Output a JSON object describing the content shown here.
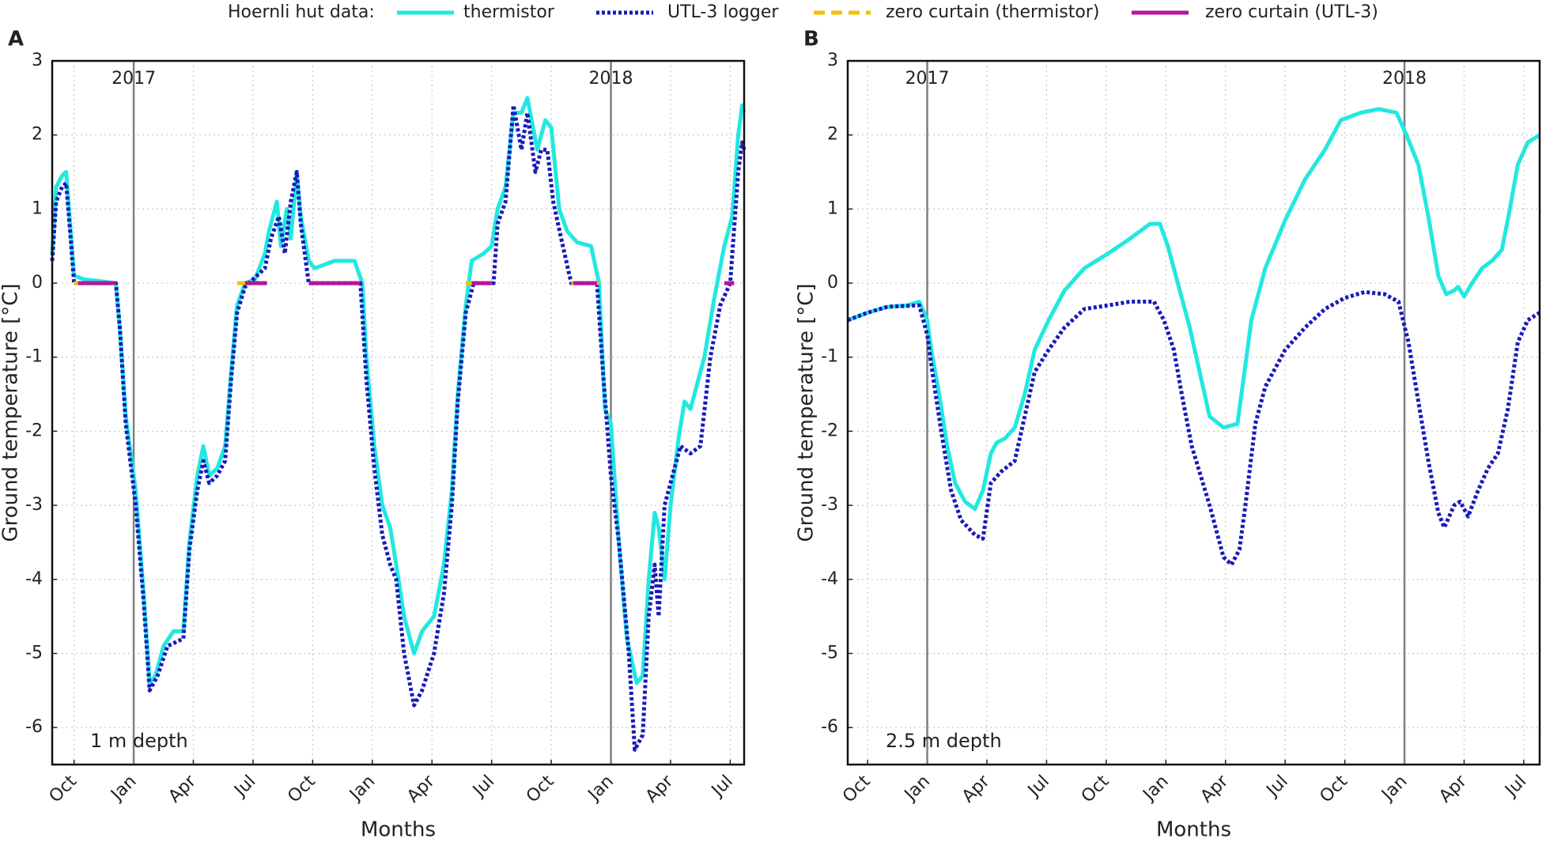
{
  "chart_data": [
    {
      "type": "line",
      "panel": "A",
      "legend_title": "Hoernli hut data:",
      "annotation": "1 m depth",
      "xlabel": "Months",
      "ylabel": "Ground temperature [°C]",
      "xlim": [
        -0.1,
        34.7
      ],
      "ylim": [
        -6.5,
        3
      ],
      "grid": true,
      "xticks": [
        {
          "value": 1,
          "label": "Oct"
        },
        {
          "value": 4,
          "label": "Jan"
        },
        {
          "value": 7,
          "label": "Apr"
        },
        {
          "value": 10,
          "label": "Jul"
        },
        {
          "value": 13,
          "label": "Oct"
        },
        {
          "value": 16,
          "label": "Jan"
        },
        {
          "value": 19,
          "label": "Apr"
        },
        {
          "value": 22,
          "label": "Jul"
        },
        {
          "value": 25,
          "label": "Oct"
        },
        {
          "value": 28,
          "label": "Jan"
        },
        {
          "value": 31,
          "label": "Apr"
        },
        {
          "value": 34,
          "label": "Jul"
        }
      ],
      "yticks": [
        -6,
        -5,
        -4,
        -3,
        -2,
        -1,
        0,
        1,
        2,
        3
      ],
      "year_markers": [
        {
          "value": 4,
          "label": "2017"
        },
        {
          "value": 28,
          "label": "2018"
        }
      ],
      "series": [
        {
          "name": "thermistor",
          "color": "#22e8e0",
          "style": "solid",
          "x": [
            -0.1,
            0.1,
            0.4,
            0.6,
            0.8,
            1.0,
            1.5,
            2.2,
            3.1,
            3.3,
            3.6,
            4.1,
            4.5,
            4.8,
            5.1,
            5.5,
            6.0,
            6.5,
            6.8,
            7.2,
            7.5,
            7.8,
            8.2,
            8.6,
            8.9,
            9.2,
            9.6,
            10.1,
            10.6,
            10.8,
            11.2,
            11.4,
            11.7,
            11.9,
            12.2,
            12.4,
            12.8,
            13.1,
            14.1,
            15.1,
            15.5,
            15.7,
            16.1,
            16.5,
            16.9,
            17.2,
            17.6,
            18.1,
            18.5,
            19.1,
            19.6,
            20.0,
            20.3,
            20.7,
            21.0,
            21.6,
            22.0,
            22.3,
            22.7,
            23.1,
            23.5,
            23.8,
            24.3,
            24.7,
            25.0,
            25.4,
            25.8,
            26.3,
            27.0,
            27.4,
            27.7,
            28.0,
            28.4,
            28.8,
            29.3,
            29.6,
            29.9,
            30.2,
            30.4,
            30.7,
            31.0,
            31.4,
            31.7,
            32.0,
            32.4,
            32.7,
            33.2,
            33.7,
            34.1,
            34.4,
            34.6,
            34.7
          ],
          "values": [
            0.4,
            1.3,
            1.45,
            1.5,
            0.8,
            0.1,
            0.05,
            0.03,
            0.0,
            -0.6,
            -1.8,
            -2.8,
            -4.2,
            -5.4,
            -5.3,
            -4.9,
            -4.7,
            -4.7,
            -3.5,
            -2.6,
            -2.2,
            -2.6,
            -2.5,
            -2.2,
            -1.2,
            -0.3,
            0,
            0.05,
            0.4,
            0.7,
            1.1,
            0.5,
            1.0,
            0.6,
            1.5,
            0.9,
            0.3,
            0.2,
            0.3,
            0.3,
            0,
            -1.0,
            -2.2,
            -3.0,
            -3.3,
            -3.8,
            -4.5,
            -5.0,
            -4.7,
            -4.5,
            -3.8,
            -2.8,
            -1.5,
            -0.3,
            0.3,
            0.4,
            0.5,
            1.0,
            1.3,
            2.3,
            2.3,
            2.5,
            1.8,
            2.2,
            2.1,
            1.0,
            0.7,
            0.55,
            0.5,
            0.0,
            -1.7,
            -1.9,
            -3.5,
            -4.8,
            -5.4,
            -5.3,
            -4.0,
            -3.1,
            -3.3,
            -4.0,
            -3.0,
            -2.1,
            -1.6,
            -1.7,
            -1.3,
            -1.0,
            -0.2,
            0.5,
            0.9,
            2.0,
            2.4,
            2.3
          ]
        },
        {
          "name": "UTL-3 logger",
          "color": "#1a1ab8",
          "style": "dotted",
          "x": [
            -0.1,
            0.1,
            0.4,
            0.6,
            0.8,
            1.0,
            3.1,
            3.3,
            3.6,
            4.1,
            4.5,
            4.8,
            5.2,
            5.7,
            6.5,
            6.8,
            7.2,
            7.5,
            7.8,
            8.2,
            8.6,
            8.9,
            9.2,
            9.6,
            10.6,
            10.9,
            11.3,
            11.6,
            11.9,
            12.2,
            12.4,
            12.8,
            15.4,
            15.7,
            16.1,
            16.5,
            16.9,
            17.2,
            17.6,
            18.1,
            18.5,
            19.1,
            19.6,
            20.0,
            20.3,
            20.7,
            21.1,
            22.1,
            22.3,
            22.7,
            23.1,
            23.5,
            23.8,
            24.2,
            24.5,
            24.8,
            25.1,
            25.5,
            26.0,
            27.3,
            27.6,
            28.0,
            28.4,
            28.9,
            29.2,
            29.6,
            29.9,
            30.2,
            30.4,
            30.7,
            31.1,
            31.5,
            32.0,
            32.5,
            33.0,
            33.5,
            34.0,
            34.4,
            34.6,
            34.7
          ],
          "values": [
            0.3,
            1.1,
            1.3,
            1.35,
            0.7,
            0,
            0,
            -0.6,
            -1.9,
            -3.0,
            -4.3,
            -5.5,
            -5.3,
            -4.9,
            -4.8,
            -3.6,
            -2.8,
            -2.4,
            -2.7,
            -2.6,
            -2.4,
            -1.3,
            -0.4,
            -0.05,
            0.2,
            0.6,
            0.9,
            0.4,
            1.1,
            1.5,
            0.8,
            0.0,
            0.0,
            -1.3,
            -2.5,
            -3.4,
            -3.8,
            -4.0,
            -5.0,
            -5.7,
            -5.5,
            -5.0,
            -4.2,
            -3.0,
            -1.6,
            -0.4,
            0,
            0,
            0.8,
            1.1,
            2.4,
            1.8,
            2.3,
            1.5,
            1.8,
            1.8,
            1.1,
            0.6,
            0,
            0,
            -1.2,
            -2.6,
            -3.5,
            -5.0,
            -6.3,
            -6.1,
            -4.5,
            -3.8,
            -4.5,
            -3.0,
            -2.6,
            -2.2,
            -2.3,
            -2.2,
            -1.0,
            -0.3,
            0.0,
            1.5,
            1.9,
            1.8
          ]
        },
        {
          "name": "zero curtain (thermistor)",
          "color": "#f2c200",
          "style": "dashed",
          "x": [
            1.0,
            3.1,
            6.0,
            9.2,
            10.7,
            15.0,
            20.7,
            22.0,
            24.0,
            26.0,
            27.4
          ],
          "values": [
            0,
            0,
            null,
            0,
            0,
            null,
            0,
            0,
            null,
            0,
            0
          ]
        },
        {
          "name": "zero curtain (UTL-3)",
          "color": "#b5159e",
          "style": "solid",
          "x": [
            1.2,
            3.1,
            6.0,
            9.6,
            10.7,
            11.5,
            12.8,
            15.4,
            18.0,
            21.0,
            22.0,
            24.0,
            26.1,
            27.3,
            30.0,
            33.7,
            34.2
          ],
          "values": [
            0,
            0,
            null,
            0,
            0,
            null,
            0,
            0,
            null,
            0,
            0,
            null,
            0,
            0,
            null,
            0,
            0
          ]
        }
      ]
    },
    {
      "type": "line",
      "panel": "B",
      "annotation": "2.5 m depth",
      "xlabel": "Months",
      "ylabel": "Ground temperature [°C]",
      "xlim": [
        0,
        34.8
      ],
      "ylim": [
        -6.5,
        3
      ],
      "grid": true,
      "xticks": [
        {
          "value": 1,
          "label": "Oct"
        },
        {
          "value": 4,
          "label": "Jan"
        },
        {
          "value": 7,
          "label": "Apr"
        },
        {
          "value": 10,
          "label": "Jul"
        },
        {
          "value": 13,
          "label": "Oct"
        },
        {
          "value": 16,
          "label": "Jan"
        },
        {
          "value": 19,
          "label": "Apr"
        },
        {
          "value": 22,
          "label": "Jul"
        },
        {
          "value": 25,
          "label": "Oct"
        },
        {
          "value": 28,
          "label": "Jan"
        },
        {
          "value": 31,
          "label": "Apr"
        },
        {
          "value": 34,
          "label": "Jul"
        }
      ],
      "yticks": [
        -6,
        -5,
        -4,
        -3,
        -2,
        -1,
        0,
        1,
        2,
        3
      ],
      "year_markers": [
        {
          "value": 4,
          "label": "2017"
        },
        {
          "value": 28,
          "label": "2018"
        }
      ],
      "series": [
        {
          "color": "#22e8e0",
          "style": "solid",
          "x": [
            0.0,
            1.0,
            2.0,
            3.0,
            3.6,
            4.0,
            4.2,
            4.6,
            5.0,
            5.4,
            5.9,
            6.4,
            6.8,
            7.2,
            7.5,
            7.9,
            8.4,
            8.9,
            9.4,
            10.1,
            10.9,
            11.9,
            13.1,
            14.2,
            15.2,
            15.7,
            16.1,
            16.6,
            17.2,
            17.7,
            18.2,
            18.9,
            19.6,
            19.9,
            20.3,
            21.0,
            22.0,
            23.0,
            24.0,
            24.8,
            25.8,
            26.7,
            27.6,
            28.1,
            28.7,
            29.2,
            29.7,
            30.1,
            30.5,
            30.7,
            31.0,
            31.4,
            31.9,
            32.4,
            32.9,
            33.3,
            33.7,
            34.2,
            34.8
          ],
          "values": [
            -0.5,
            -0.4,
            -0.32,
            -0.3,
            -0.25,
            -0.5,
            -0.9,
            -1.5,
            -2.2,
            -2.7,
            -2.95,
            -3.05,
            -2.8,
            -2.3,
            -2.15,
            -2.1,
            -1.95,
            -1.5,
            -0.9,
            -0.5,
            -0.1,
            0.2,
            0.4,
            0.6,
            0.8,
            0.8,
            0.5,
            0.0,
            -0.6,
            -1.2,
            -1.8,
            -1.95,
            -1.9,
            -1.3,
            -0.5,
            0.2,
            0.85,
            1.4,
            1.8,
            2.2,
            2.3,
            2.35,
            2.3,
            2.0,
            1.6,
            0.9,
            0.1,
            -0.15,
            -0.1,
            -0.05,
            -0.18,
            0.0,
            0.2,
            0.3,
            0.45,
            1.0,
            1.6,
            1.9,
            2.0
          ]
        },
        {
          "color": "#1a1ab8",
          "style": "dotted",
          "x": [
            0.0,
            1.0,
            2.0,
            3.6,
            4.0,
            4.2,
            4.7,
            5.2,
            5.7,
            6.4,
            6.8,
            7.2,
            7.7,
            8.4,
            8.9,
            9.4,
            10.1,
            10.9,
            11.9,
            13.1,
            14.2,
            15.4,
            15.9,
            16.4,
            16.8,
            17.3,
            18.2,
            18.9,
            19.3,
            19.7,
            20.0,
            20.5,
            21.0,
            22.0,
            23.0,
            24.0,
            25.0,
            26.0,
            27.0,
            27.7,
            28.2,
            28.7,
            29.2,
            29.7,
            30.0,
            30.5,
            30.8,
            31.2,
            31.7,
            32.2,
            32.7,
            33.2,
            33.7,
            34.2,
            34.8
          ],
          "values": [
            -0.5,
            -0.4,
            -0.32,
            -0.3,
            -0.7,
            -1.1,
            -2.0,
            -2.8,
            -3.2,
            -3.4,
            -3.45,
            -2.7,
            -2.55,
            -2.4,
            -1.8,
            -1.2,
            -0.9,
            -0.6,
            -0.35,
            -0.3,
            -0.25,
            -0.25,
            -0.5,
            -0.9,
            -1.5,
            -2.2,
            -3.0,
            -3.7,
            -3.8,
            -3.6,
            -3.0,
            -1.9,
            -1.4,
            -0.9,
            -0.6,
            -0.35,
            -0.2,
            -0.12,
            -0.15,
            -0.25,
            -0.8,
            -1.6,
            -2.4,
            -3.1,
            -3.3,
            -3.0,
            -2.95,
            -3.15,
            -2.8,
            -2.5,
            -2.3,
            -1.7,
            -0.8,
            -0.5,
            -0.4
          ]
        }
      ]
    }
  ]
}
